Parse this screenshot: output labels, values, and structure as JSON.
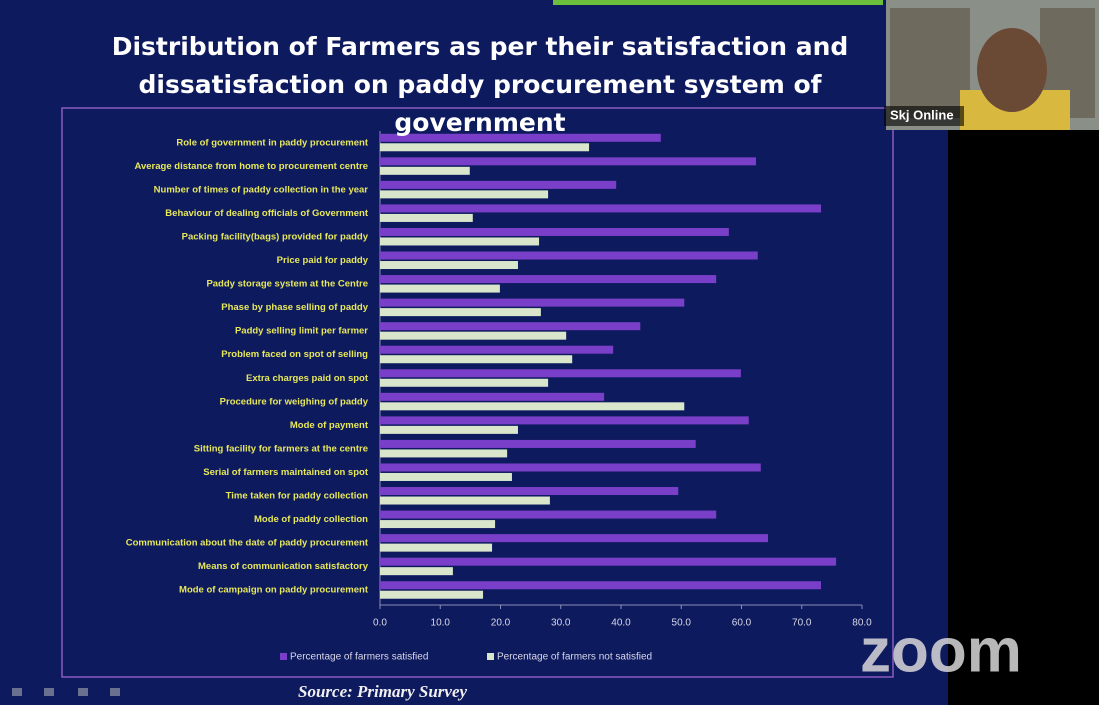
{
  "chart_data": {
    "type": "barh",
    "title": "Distribution of Farmers as per their satisfaction and dissatisfaction on paddy procurement system of government",
    "categories": [
      "Role of government in paddy procurement",
      "Average distance from home to procurement centre",
      "Number of times of paddy collection in the year",
      "Behaviour of dealing officials of Government",
      "Packing facility(bags) provided for paddy",
      "Price paid for paddy",
      "Paddy storage system at the Centre",
      "Phase by phase selling of paddy",
      "Paddy selling limit per farmer",
      "Problem faced on spot of selling",
      "Extra charges paid on spot",
      "Procedure for weighing of paddy",
      "Mode of payment",
      "Sitting facility for farmers at the centre",
      "Serial of farmers maintained on spot",
      "Time taken for paddy collection",
      "Mode of paddy collection",
      "Communication about the date of paddy procurement",
      "Means of communication satisfactory",
      "Mode of campaign on paddy procurement"
    ],
    "series": [
      {
        "name": "Percentage of farmers satisfied",
        "color": "#7a3fc8",
        "values": [
          46.6,
          62.4,
          39.2,
          73.2,
          57.9,
          62.7,
          55.8,
          50.5,
          43.2,
          38.7,
          59.9,
          37.2,
          61.2,
          52.4,
          63.2,
          49.5,
          55.8,
          64.4,
          75.7,
          73.2
        ]
      },
      {
        "name": "Percentage of farmers not satisfied",
        "color": "#d9e6cc",
        "values": [
          34.7,
          14.9,
          27.9,
          15.4,
          26.4,
          22.9,
          19.9,
          26.7,
          30.9,
          31.9,
          27.9,
          50.5,
          22.9,
          21.1,
          21.9,
          28.2,
          19.1,
          18.6,
          12.1,
          17.1
        ]
      }
    ],
    "xlim": [
      0,
      80
    ],
    "xticks": [
      {
        "value": 0,
        "label": "0.0"
      },
      {
        "value": 10,
        "label": "10.0"
      },
      {
        "value": 20,
        "label": "20.0"
      },
      {
        "value": 30,
        "label": "30.0"
      },
      {
        "value": 40,
        "label": "40.0"
      },
      {
        "value": 50,
        "label": "50.0"
      },
      {
        "value": 60,
        "label": "60.0"
      },
      {
        "value": 70,
        "label": "70.0"
      },
      {
        "value": 80,
        "label": "80.0"
      }
    ],
    "grid": false,
    "legend": "bottom",
    "source": "Source: Primary Survey"
  },
  "participant_name": "Skj Online",
  "watermark": "zoom"
}
